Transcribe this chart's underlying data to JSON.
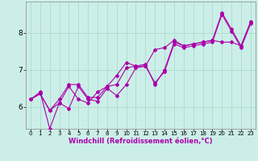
{
  "xlabel": "Windchill (Refroidissement éolien,°C)",
  "xlim": [
    -0.5,
    23.5
  ],
  "ylim": [
    5.4,
    8.85
  ],
  "yticks": [
    6,
    7,
    8
  ],
  "xticks": [
    0,
    1,
    2,
    3,
    4,
    5,
    6,
    7,
    8,
    9,
    10,
    11,
    12,
    13,
    14,
    15,
    16,
    17,
    18,
    19,
    20,
    21,
    22,
    23
  ],
  "background_color": "#cceee8",
  "grid_color": "#aaddcc",
  "line_color": "#aa00aa",
  "series": [
    [
      6.2,
      6.4,
      5.4,
      6.1,
      6.55,
      6.2,
      6.1,
      6.4,
      6.55,
      6.6,
      7.05,
      7.1,
      7.1,
      7.55,
      7.6,
      7.8,
      7.65,
      7.7,
      7.75,
      7.8,
      8.55,
      8.1,
      7.65,
      8.3
    ],
    [
      6.2,
      6.35,
      5.9,
      6.2,
      6.6,
      6.6,
      6.25,
      6.25,
      6.55,
      6.85,
      7.2,
      7.1,
      7.15,
      6.6,
      7.0,
      7.75,
      7.65,
      7.7,
      7.75,
      7.8,
      7.75,
      7.75,
      7.65,
      8.3
    ],
    [
      6.2,
      6.35,
      5.9,
      6.1,
      5.95,
      6.55,
      6.2,
      6.15,
      6.5,
      6.3,
      6.6,
      7.05,
      7.1,
      6.65,
      6.95,
      7.7,
      7.6,
      7.65,
      7.7,
      7.75,
      8.5,
      8.05,
      7.6,
      8.25
    ]
  ],
  "spine_color": "#999999",
  "xlabel_fontsize": 6.0,
  "xlabel_color": "#aa00aa",
  "ytick_fontsize": 6.5,
  "xtick_fontsize": 5.0
}
